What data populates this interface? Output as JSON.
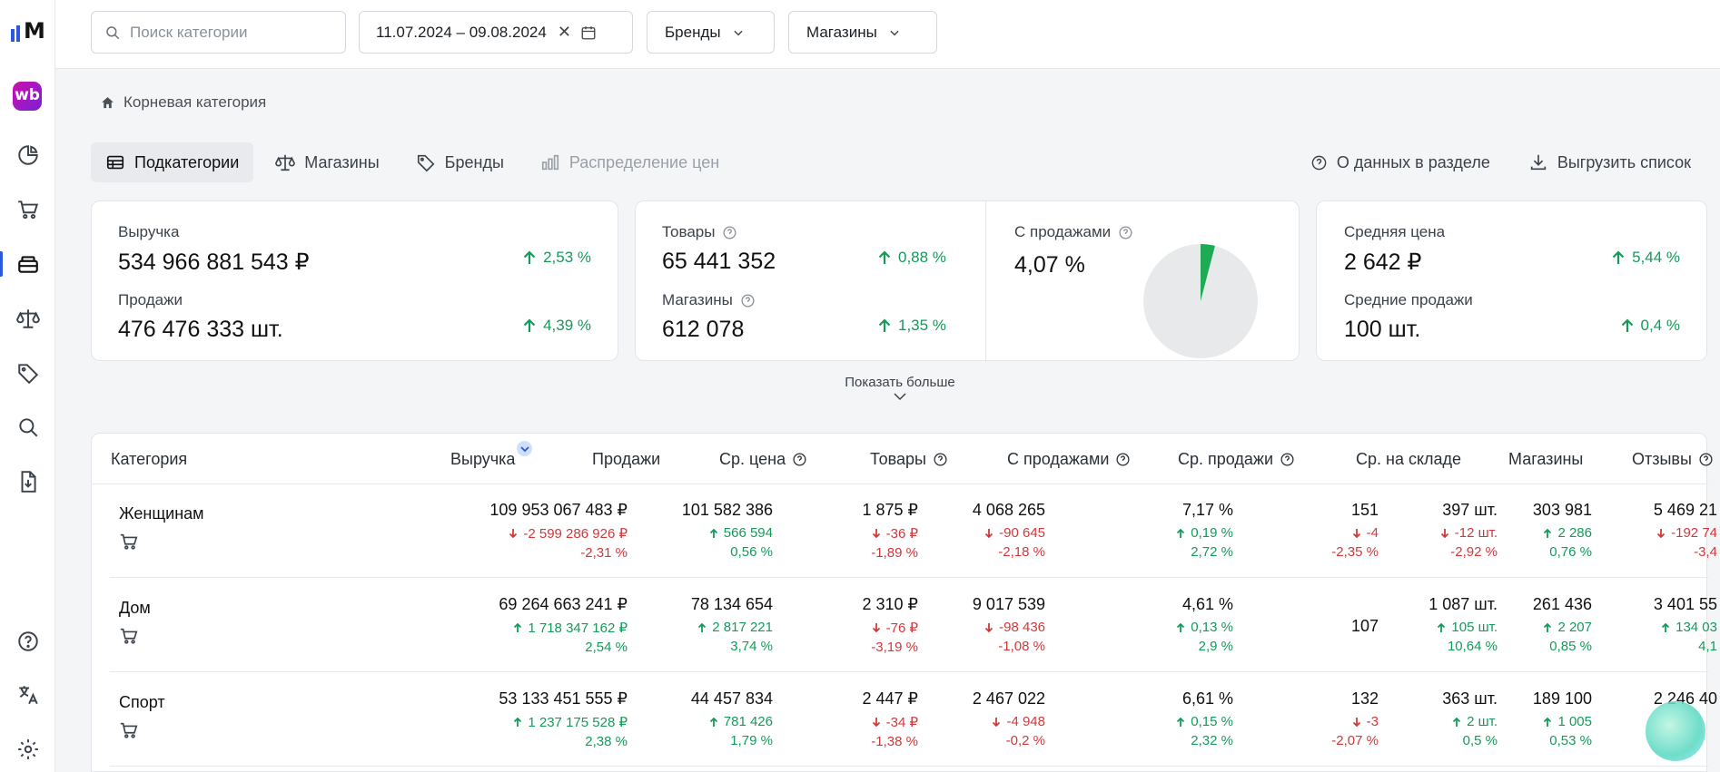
{
  "sidebar": {
    "logo_text": "M",
    "app_badge": "wb",
    "items": [
      {
        "icon": "pie-chart-icon"
      },
      {
        "icon": "cart-icon"
      },
      {
        "icon": "categories-icon",
        "active": true
      },
      {
        "icon": "scales-icon"
      },
      {
        "icon": "tag-icon"
      },
      {
        "icon": "search-icon"
      },
      {
        "icon": "file-download-icon"
      }
    ],
    "bottom": [
      {
        "icon": "help-icon"
      },
      {
        "icon": "translate-icon"
      },
      {
        "icon": "gear-icon"
      }
    ]
  },
  "topbar": {
    "search_placeholder": "Поиск категории",
    "date_range": "11.07.2024 – 09.08.2024",
    "brands_label": "Бренды",
    "shops_label": "Магазины"
  },
  "breadcrumb": {
    "label": "Корневая категория"
  },
  "tabs": [
    {
      "label": "Подкатегории",
      "active": true
    },
    {
      "label": "Магазины"
    },
    {
      "label": "Бренды"
    },
    {
      "label": "Распределение цен",
      "disabled": true
    }
  ],
  "actions": {
    "about": "О данных в разделе",
    "export": "Выгрузить список"
  },
  "cards": {
    "revenue": {
      "label": "Выручка",
      "value": "534 966 881 543 ₽",
      "delta": "2,53 %"
    },
    "sales": {
      "label": "Продажи",
      "value": "476 476 333 шт.",
      "delta": "4,39 %"
    },
    "goods": {
      "label": "Товары",
      "value": "65 441 352",
      "delta": "0,88 %"
    },
    "shops": {
      "label": "Магазины",
      "value": "612 078",
      "delta": "1,35 %"
    },
    "with_sales": {
      "label": "С продажами",
      "value": "4,07 %",
      "share": 0.0407
    },
    "avg_price": {
      "label": "Средняя цена",
      "value": "2 642 ₽",
      "delta": "5,44 %"
    },
    "avg_sales": {
      "label": "Средние продажи",
      "value": "100 шт.",
      "delta": "0,4 %"
    }
  },
  "show_more": "Показать больше",
  "colors": {
    "positive": "#169a5a",
    "negative": "#d0393b",
    "accent": "#2a59e0",
    "pie_slice": "#1faa55",
    "pie_bg": "#e8e9eb"
  },
  "table": {
    "columns": [
      "Категория",
      "Выручка",
      "Продажи",
      "Ср. цена",
      "Товары",
      "С продажами",
      "Ср. продажи",
      "Ср. на складе",
      "Магазины",
      "Отзывы"
    ],
    "rows": [
      {
        "name": "Женщинам",
        "revenue": {
          "v": "109 953 067 483 ₽",
          "d": "-2 599 286 926 ₽",
          "p": "-2,31 %"
        },
        "sales": {
          "v": "101 582 386",
          "d": "566 594",
          "p": "0,56 %"
        },
        "avg_price": {
          "v": "1 875 ₽",
          "d": "-36 ₽",
          "p": "-1,89 %"
        },
        "goods": {
          "v": "4 068 265",
          "d": "-90 645",
          "p": "-2,18 %"
        },
        "with_sales": {
          "v": "7,17 %",
          "d": "0,19 %",
          "p": "2,72 %"
        },
        "avg_sales": {
          "v": "151",
          "d": "-4",
          "p": "-2,35 %"
        },
        "stock": {
          "v": "397 шт.",
          "d": "-12 шт.",
          "p": "-2,92 %"
        },
        "shops": {
          "v": "303 981",
          "d": "2 286",
          "p": "0,76 %"
        },
        "reviews": {
          "v": "5 469 21",
          "d": "-192 74",
          "p": "-3,4"
        }
      },
      {
        "name": "Дом",
        "revenue": {
          "v": "69 264 663 241 ₽",
          "d": "1 718 347 162 ₽",
          "p": "2,54 %"
        },
        "sales": {
          "v": "78 134 654",
          "d": "2 817 221",
          "p": "3,74 %"
        },
        "avg_price": {
          "v": "2 310 ₽",
          "d": "-76 ₽",
          "p": "-3,19 %"
        },
        "goods": {
          "v": "9 017 539",
          "d": "-98 436",
          "p": "-1,08 %"
        },
        "with_sales": {
          "v": "4,61 %",
          "d": "0,13 %",
          "p": "2,9 %"
        },
        "avg_sales": {
          "v": "107",
          "d": "",
          "p": ""
        },
        "stock": {
          "v": "1 087 шт.",
          "d": "105 шт.",
          "p": "10,64 %"
        },
        "shops": {
          "v": "261 436",
          "d": "2 207",
          "p": "0,85 %"
        },
        "reviews": {
          "v": "3 401 55",
          "d": "134 03",
          "p": "4,1"
        }
      },
      {
        "name": "Спорт",
        "revenue": {
          "v": "53 133 451 555 ₽",
          "d": "1 237 175 528 ₽",
          "p": "2,38 %"
        },
        "sales": {
          "v": "44 457 834",
          "d": "781 426",
          "p": "1,79 %"
        },
        "avg_price": {
          "v": "2 447 ₽",
          "d": "-34 ₽",
          "p": "-1,38 %"
        },
        "goods": {
          "v": "2 467 022",
          "d": "-4 948",
          "p": "-0,2 %"
        },
        "with_sales": {
          "v": "6,61 %",
          "d": "0,15 %",
          "p": "2,32 %"
        },
        "avg_sales": {
          "v": "132",
          "d": "-3",
          "p": "-2,07 %"
        },
        "stock": {
          "v": "363 шт.",
          "d": "2 шт.",
          "p": "0,5 %"
        },
        "shops": {
          "v": "189 100",
          "d": "1 005",
          "p": "0,53 %"
        },
        "reviews": {
          "v": "2 246 40",
          "d": "",
          "p": ""
        }
      }
    ]
  }
}
